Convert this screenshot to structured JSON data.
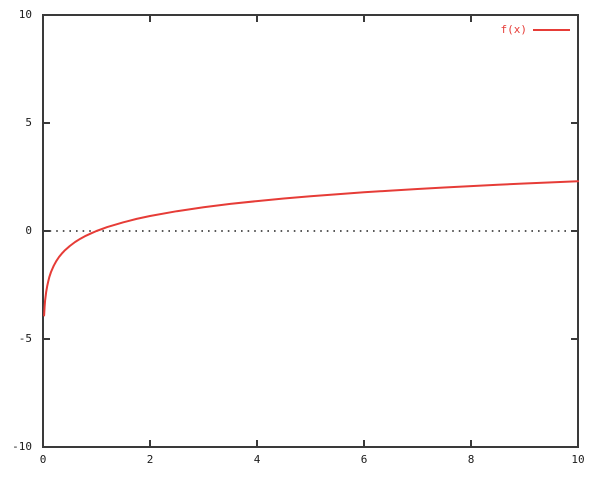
{
  "chart_data": {
    "type": "line",
    "title": "",
    "xlabel": "",
    "ylabel": "",
    "xlim": [
      0,
      10
    ],
    "ylim": [
      -10,
      10
    ],
    "xticks": [
      0,
      2,
      4,
      6,
      8,
      10
    ],
    "yticks": [
      -10,
      -5,
      0,
      5,
      10
    ],
    "grid": false,
    "legend_position": "top-right-inside",
    "zero_line": {
      "y": 0,
      "style": "dotted",
      "color": "#222222"
    },
    "series": [
      {
        "name": "f(x)",
        "color": "#e63c37",
        "x": [
          0.02,
          0.03,
          0.04,
          0.05,
          0.06,
          0.08,
          0.1,
          0.12,
          0.15,
          0.2,
          0.25,
          0.3,
          0.35,
          0.4,
          0.5,
          0.6,
          0.7,
          0.8,
          0.9,
          1.0,
          1.2,
          1.5,
          1.75,
          2.0,
          2.5,
          3.0,
          3.5,
          4.0,
          4.5,
          5.0,
          5.5,
          6.0,
          6.5,
          7.0,
          7.5,
          8.0,
          8.5,
          9.0,
          9.5,
          10.0
        ],
        "y": [
          -3.912,
          -3.507,
          -3.219,
          -2.996,
          -2.813,
          -2.526,
          -2.303,
          -2.12,
          -1.897,
          -1.609,
          -1.386,
          -1.204,
          -1.05,
          -0.916,
          -0.693,
          -0.511,
          -0.357,
          -0.223,
          -0.105,
          0.0,
          0.182,
          0.405,
          0.56,
          0.693,
          0.916,
          1.099,
          1.253,
          1.386,
          1.504,
          1.609,
          1.705,
          1.792,
          1.872,
          1.946,
          2.015,
          2.079,
          2.14,
          2.197,
          2.251,
          2.303
        ]
      }
    ]
  },
  "colors": {
    "background": "#ffffff",
    "border": "#3a3a3a",
    "tick_text": "#1a1a1a",
    "series": "#e63c37",
    "zero_line": "#222222"
  }
}
